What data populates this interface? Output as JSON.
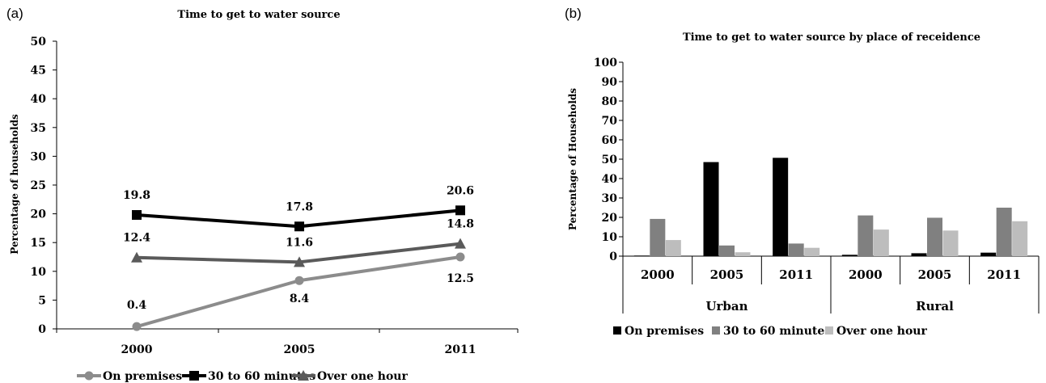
{
  "chart_data": [
    {
      "panel": "(a)",
      "type": "line",
      "title": "Time to get to water source",
      "xlabel": "",
      "ylabel": "Percentage of households",
      "categories": [
        "2000",
        "2005",
        "2011"
      ],
      "ylim": [
        0,
        50
      ],
      "yticks": [
        0,
        5,
        10,
        15,
        20,
        25,
        30,
        35,
        40,
        45,
        50
      ],
      "grid": false,
      "legend_position": "bottom",
      "series": [
        {
          "name": "On premises",
          "values": [
            0.4,
            8.4,
            12.5
          ],
          "labels": [
            "0.4",
            "8.4",
            "12.5"
          ],
          "color": "#8c8c8c",
          "marker": "circle"
        },
        {
          "name": "30 to 60 minutes",
          "values": [
            19.8,
            17.8,
            20.6
          ],
          "labels": [
            "19.8",
            "17.8",
            "20.6"
          ],
          "color": "#000000",
          "marker": "square"
        },
        {
          "name": "Over one hour",
          "values": [
            12.4,
            11.6,
            14.8
          ],
          "labels": [
            "12.4",
            "11.6",
            "14.8"
          ],
          "color": "#5a5a5a",
          "marker": "triangle"
        }
      ]
    },
    {
      "panel": "(b)",
      "type": "bar",
      "title": "Time to get to water source by place of receidence",
      "xlabel": "",
      "ylabel": "Percentage of Households",
      "groups": [
        "Urban",
        "Rural"
      ],
      "categories": [
        "2000",
        "2005",
        "2011",
        "2000",
        "2005",
        "2011"
      ],
      "ylim": [
        0,
        100
      ],
      "yticks": [
        0,
        10,
        20,
        30,
        40,
        50,
        60,
        70,
        80,
        90,
        100
      ],
      "grid": false,
      "legend_position": "bottom",
      "series": [
        {
          "name": "On premises",
          "values": [
            0.3,
            48.5,
            50.7,
            0.7,
            1.5,
            1.8
          ],
          "color": "#000000"
        },
        {
          "name": "30 to 60 minutes",
          "values": [
            19.2,
            5.5,
            6.5,
            21.0,
            19.8,
            25.0
          ],
          "color": "#808080"
        },
        {
          "name": "Over one hour",
          "values": [
            8.3,
            2.0,
            4.3,
            13.7,
            13.2,
            18.0
          ],
          "color": "#bdbdbd"
        }
      ]
    }
  ]
}
